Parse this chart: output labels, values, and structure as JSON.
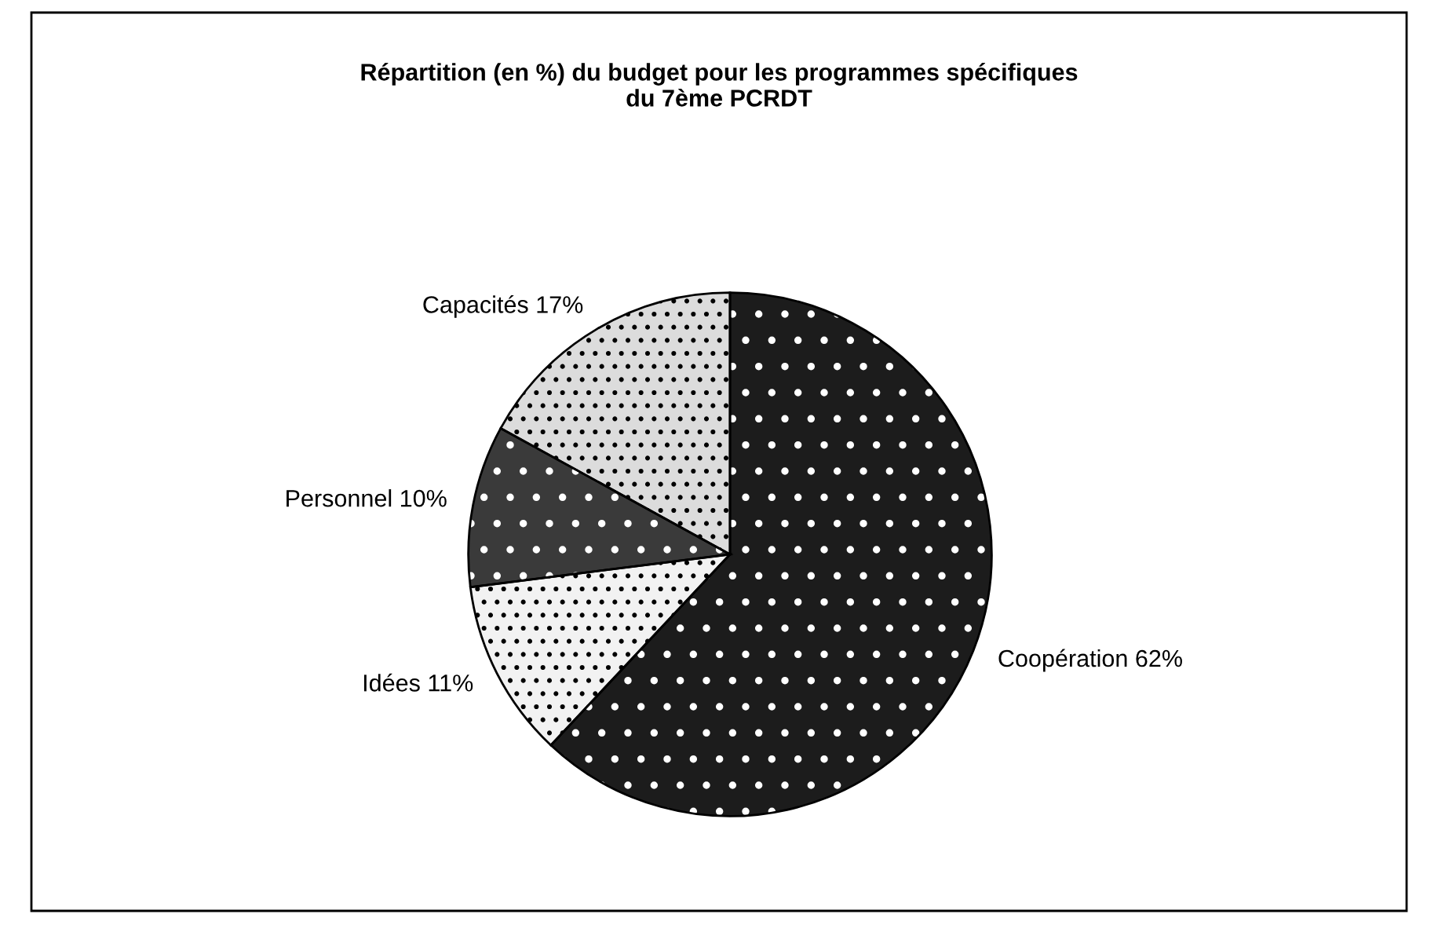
{
  "chart_data": {
    "type": "pie",
    "title": "Répartition (en %) du budget pour les programmes spécifiques\ndu 7ème PCRDT",
    "categories": [
      "Coopération",
      "Idées",
      "Personnel",
      "Capacités"
    ],
    "values": [
      62,
      11,
      10,
      17
    ],
    "value_labels": [
      "62%",
      "11%",
      "10%",
      "17%"
    ],
    "colors": [
      "#1c1c1c",
      "#f2f2f2",
      "#3a3a3a",
      "#dcdcdc"
    ]
  }
}
